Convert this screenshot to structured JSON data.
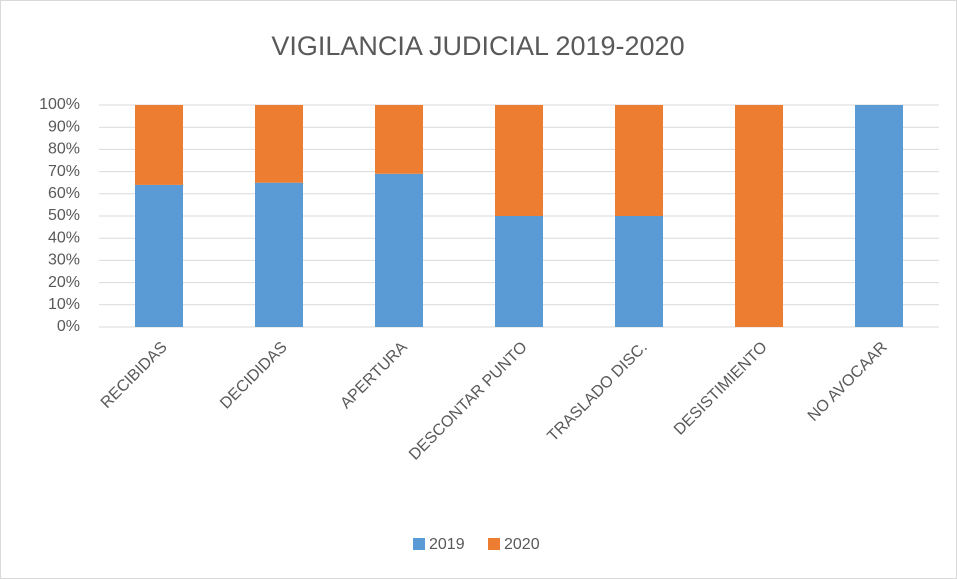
{
  "chart_data": {
    "type": "stacked_bar",
    "title": "VIGILANCIA JUDICIAL 2019-2020",
    "categories": [
      "RECIBIDAS",
      "DECIDIDAS",
      "APERTURA",
      "DESCONTAR PUNTO",
      "TRASLADO DISC.",
      "DESISTIMIENTO",
      "NO AVOCAAR"
    ],
    "series": [
      {
        "name": "2019",
        "color": "#5b9bd5",
        "values": [
          64,
          65,
          69,
          50,
          50,
          0,
          100
        ]
      },
      {
        "name": "2020",
        "color": "#ed7d31",
        "values": [
          36,
          35,
          31,
          50,
          50,
          100,
          0
        ]
      }
    ],
    "ylim": [
      0,
      100
    ],
    "yticks": [
      {
        "value": 0,
        "label": "0%"
      },
      {
        "value": 10,
        "label": "10%"
      },
      {
        "value": 20,
        "label": "20%"
      },
      {
        "value": 30,
        "label": "30%"
      },
      {
        "value": 40,
        "label": "40%"
      },
      {
        "value": 50,
        "label": "50%"
      },
      {
        "value": 60,
        "label": "60%"
      },
      {
        "value": 70,
        "label": "70%"
      },
      {
        "value": 80,
        "label": "80%"
      },
      {
        "value": 90,
        "label": "90%"
      },
      {
        "value": 100,
        "label": "100%"
      }
    ],
    "grid": true,
    "legend": "bottom"
  }
}
